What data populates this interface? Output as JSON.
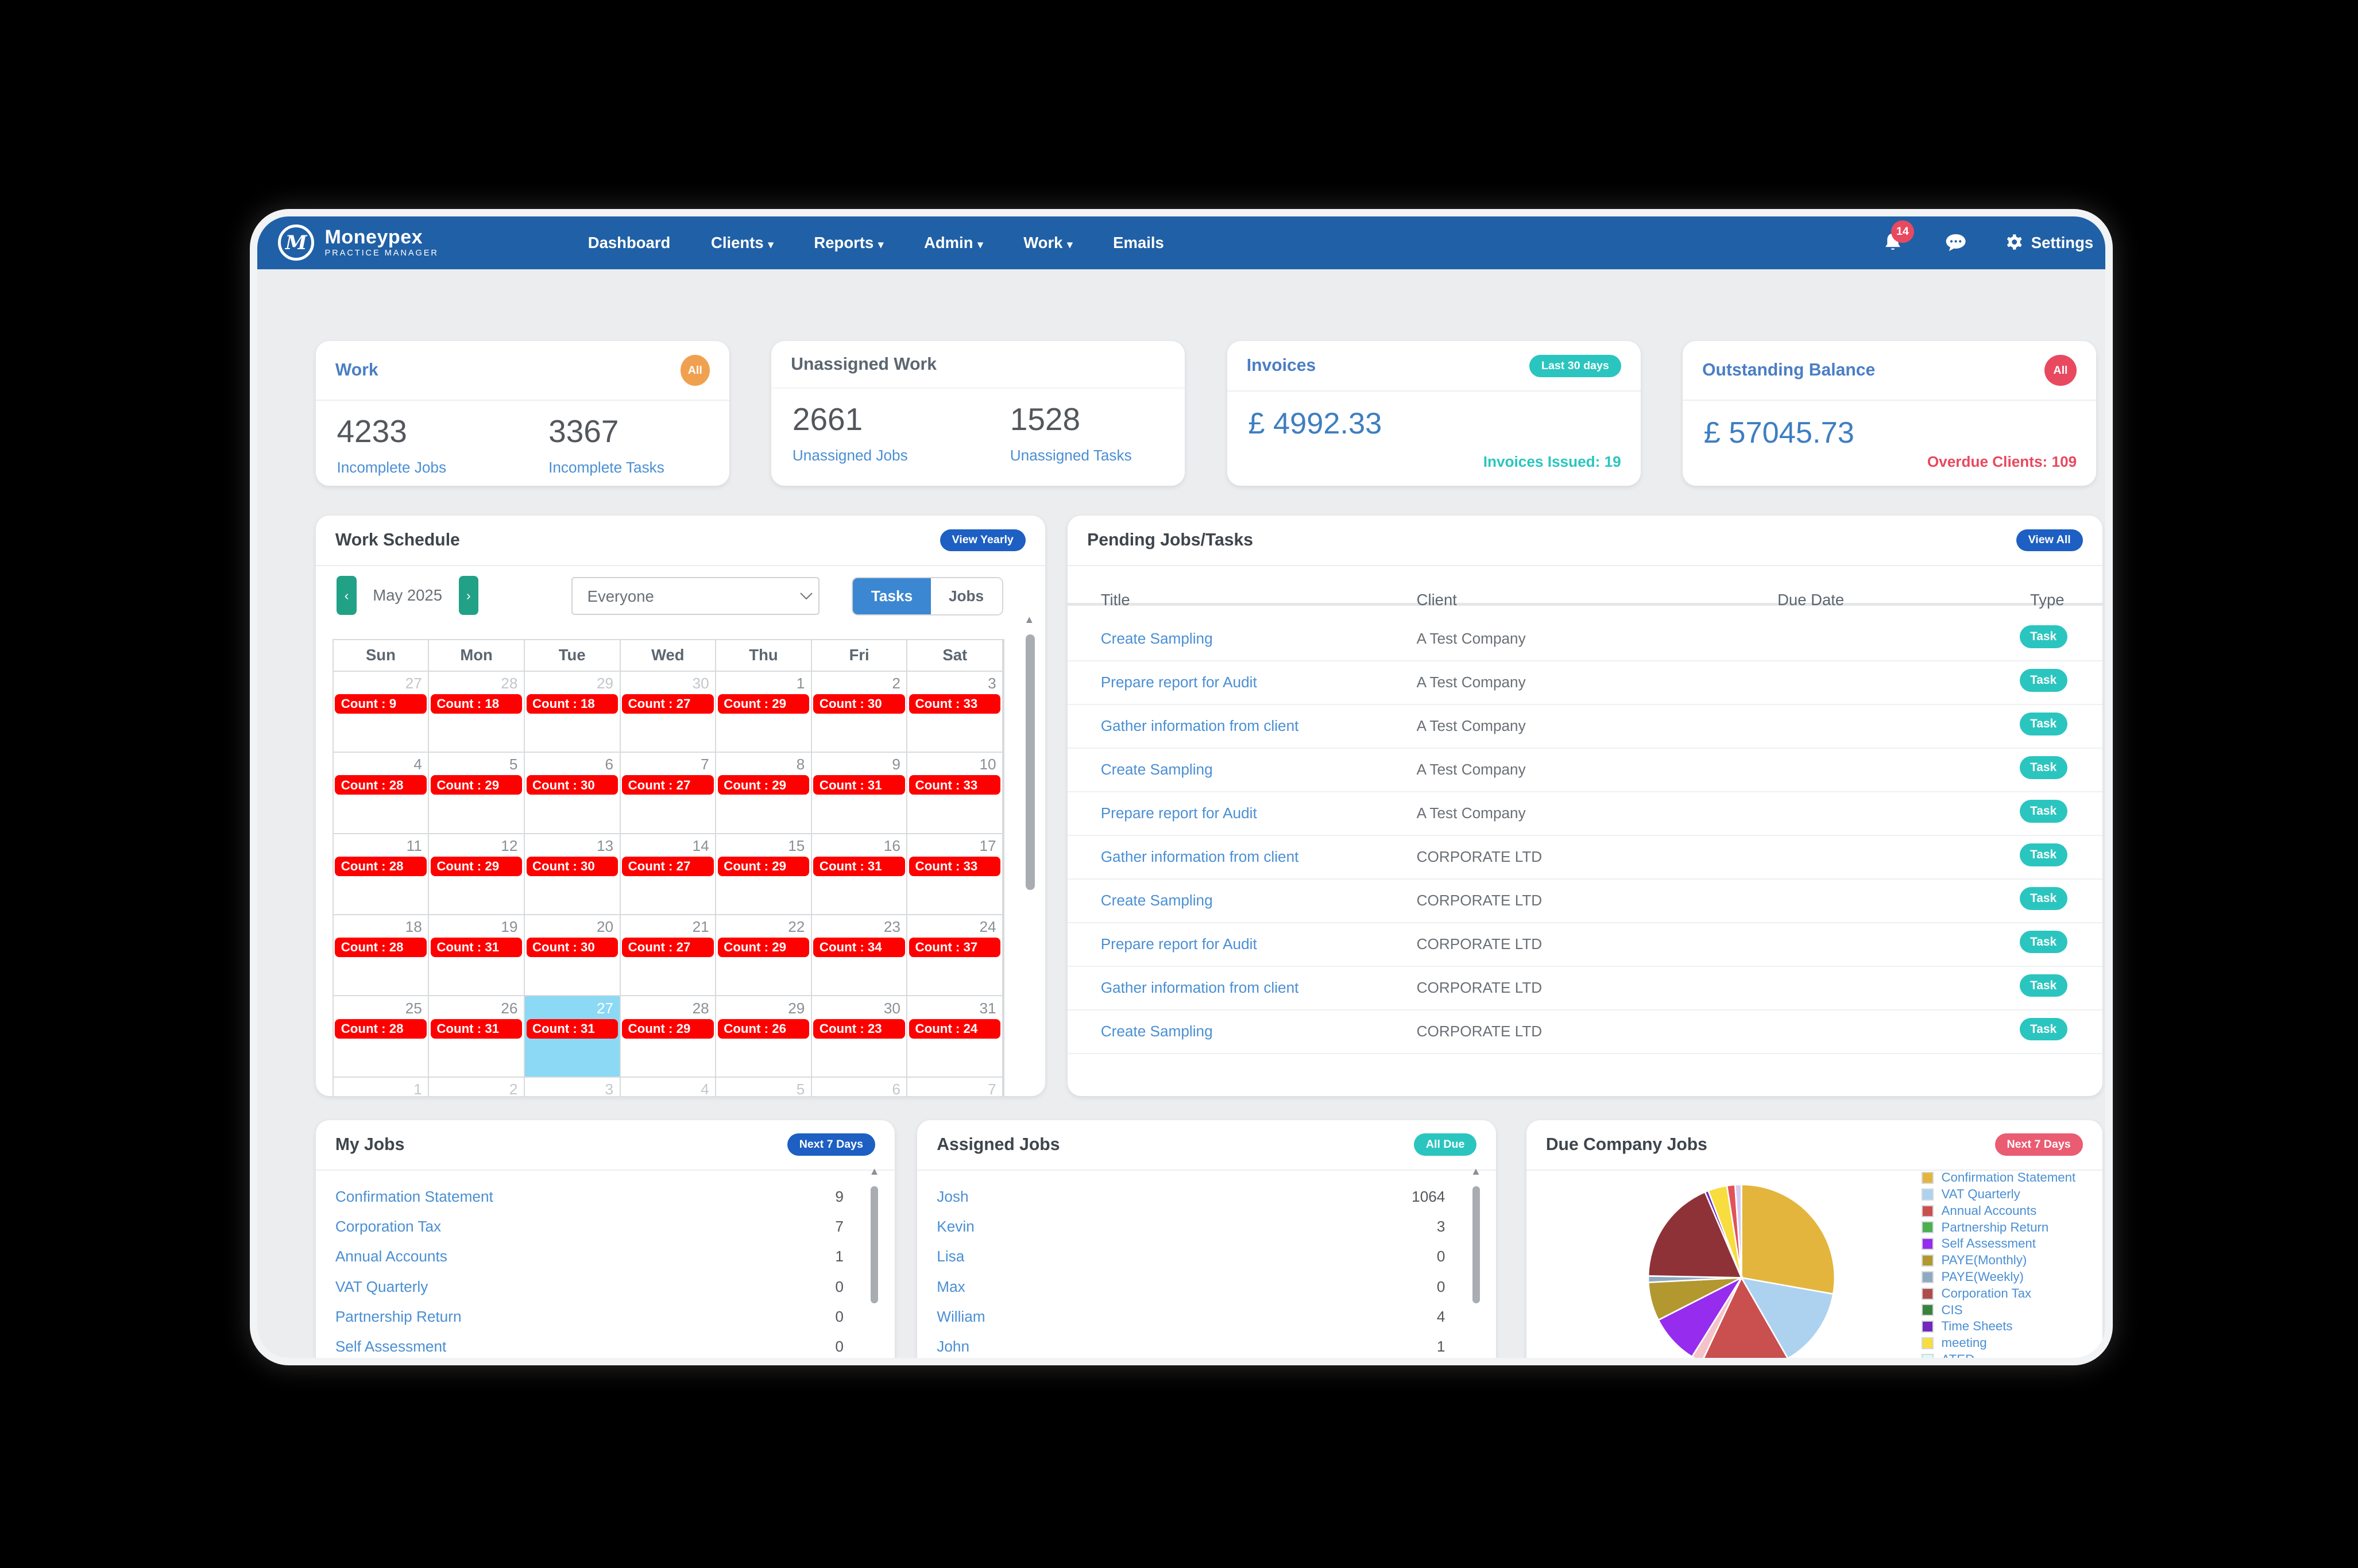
{
  "nav": {
    "brand": {
      "name": "Moneypex",
      "sub": "PRACTICE MANAGER",
      "logo_letter": "M"
    },
    "menu": [
      {
        "label": "Dashboard",
        "caret": false
      },
      {
        "label": "Clients",
        "caret": true
      },
      {
        "label": "Reports",
        "caret": true
      },
      {
        "label": "Admin",
        "caret": true
      },
      {
        "label": "Work",
        "caret": true
      },
      {
        "label": "Emails",
        "caret": false
      }
    ],
    "notification_count": "14",
    "settings_label": "Settings"
  },
  "stats": {
    "work": {
      "title": "Work",
      "badge": "All",
      "items": [
        {
          "value": "4233",
          "label": "Incomplete Jobs"
        },
        {
          "value": "3367",
          "label": "Incomplete Tasks"
        }
      ]
    },
    "unassigned": {
      "title": "Unassigned Work",
      "items": [
        {
          "value": "2661",
          "label": "Unassigned Jobs"
        },
        {
          "value": "1528",
          "label": "Unassigned Tasks"
        }
      ]
    },
    "invoices": {
      "title": "Invoices",
      "badge": "Last 30 days",
      "amount": "£ 4992.33",
      "note": "Invoices Issued: 19"
    },
    "outstanding": {
      "title": "Outstanding Balance",
      "badge": "All",
      "amount": "£ 57045.73",
      "note": "Overdue Clients: 109"
    }
  },
  "schedule": {
    "title": "Work Schedule",
    "action": "View Yearly",
    "month": "May 2025",
    "prev_icon": "‹",
    "next_icon": "›",
    "person": "Everyone",
    "toggle": [
      "Tasks",
      "Jobs"
    ],
    "active_toggle": "Tasks",
    "count_prefix": "Count : ",
    "weekdays": [
      "Sun",
      "Mon",
      "Tue",
      "Wed",
      "Thu",
      "Fri",
      "Sat"
    ],
    "weeks": [
      [
        {
          "d": 27,
          "out": true,
          "c": 9
        },
        {
          "d": 28,
          "out": true,
          "c": 18
        },
        {
          "d": 29,
          "out": true,
          "c": 18
        },
        {
          "d": 30,
          "out": true,
          "c": 27
        },
        {
          "d": 1,
          "c": 29
        },
        {
          "d": 2,
          "c": 30
        },
        {
          "d": 3,
          "c": 33
        }
      ],
      [
        {
          "d": 4,
          "c": 28
        },
        {
          "d": 5,
          "c": 29
        },
        {
          "d": 6,
          "c": 30
        },
        {
          "d": 7,
          "c": 27
        },
        {
          "d": 8,
          "c": 29
        },
        {
          "d": 9,
          "c": 31
        },
        {
          "d": 10,
          "c": 33
        }
      ],
      [
        {
          "d": 11,
          "c": 28
        },
        {
          "d": 12,
          "c": 29
        },
        {
          "d": 13,
          "c": 30
        },
        {
          "d": 14,
          "c": 27
        },
        {
          "d": 15,
          "c": 29
        },
        {
          "d": 16,
          "c": 31
        },
        {
          "d": 17,
          "c": 33
        }
      ],
      [
        {
          "d": 18,
          "c": 28
        },
        {
          "d": 19,
          "c": 31
        },
        {
          "d": 20,
          "c": 30
        },
        {
          "d": 21,
          "c": 27
        },
        {
          "d": 22,
          "c": 29
        },
        {
          "d": 23,
          "c": 34
        },
        {
          "d": 24,
          "c": 37
        }
      ],
      [
        {
          "d": 25,
          "c": 28
        },
        {
          "d": 26,
          "c": 31
        },
        {
          "d": 27,
          "c": 31,
          "today": true
        },
        {
          "d": 28,
          "c": 29
        },
        {
          "d": 29,
          "c": 26
        },
        {
          "d": 30,
          "c": 23
        },
        {
          "d": 31,
          "c": 24
        }
      ]
    ],
    "partial_week": [
      {
        "d": 1,
        "bar": true
      },
      {
        "d": 2,
        "bar": true
      },
      {
        "d": 3,
        "bar": true
      },
      {
        "d": 4,
        "bar": true
      },
      {
        "d": 5,
        "bar": false
      },
      {
        "d": 6,
        "bar": false
      },
      {
        "d": 7,
        "bar": true
      }
    ]
  },
  "pending": {
    "title": "Pending Jobs/Tasks",
    "action": "View All",
    "columns": [
      "Title",
      "Client",
      "Due Date",
      "Type"
    ],
    "rows": [
      {
        "title": "Create Sampling",
        "client": "A Test Company",
        "due": "",
        "type": "Task"
      },
      {
        "title": "Prepare report for Audit",
        "client": "A Test Company",
        "due": "",
        "type": "Task"
      },
      {
        "title": "Gather information from client",
        "client": "A Test Company",
        "due": "",
        "type": "Task"
      },
      {
        "title": "Create Sampling",
        "client": "A Test Company",
        "due": "",
        "type": "Task"
      },
      {
        "title": "Prepare report for Audit",
        "client": "A Test Company",
        "due": "",
        "type": "Task"
      },
      {
        "title": "Gather information from client",
        "client": "CORPORATE LTD",
        "due": "",
        "type": "Task"
      },
      {
        "title": "Create Sampling",
        "client": "CORPORATE LTD",
        "due": "",
        "type": "Task"
      },
      {
        "title": "Prepare report for Audit",
        "client": "CORPORATE LTD",
        "due": "",
        "type": "Task"
      },
      {
        "title": "Gather information from client",
        "client": "CORPORATE LTD",
        "due": "",
        "type": "Task"
      },
      {
        "title": "Create Sampling",
        "client": "CORPORATE LTD",
        "due": "",
        "type": "Task"
      }
    ]
  },
  "my_jobs": {
    "title": "My Jobs",
    "badge": "Next 7 Days",
    "items": [
      {
        "label": "Confirmation Statement",
        "count": "9"
      },
      {
        "label": "Corporation Tax",
        "count": "7"
      },
      {
        "label": "Annual Accounts",
        "count": "1"
      },
      {
        "label": "VAT Quarterly",
        "count": "0"
      },
      {
        "label": "Partnership Return",
        "count": "0"
      },
      {
        "label": "Self Assessment",
        "count": "0"
      }
    ]
  },
  "assigned_jobs": {
    "title": "Assigned Jobs",
    "badge": "All Due",
    "items": [
      {
        "label": "Josh",
        "count": "1064"
      },
      {
        "label": "Kevin",
        "count": "3"
      },
      {
        "label": "Lisa",
        "count": "0"
      },
      {
        "label": "Max",
        "count": "0"
      },
      {
        "label": "William",
        "count": "4"
      },
      {
        "label": "John",
        "count": "1"
      }
    ]
  },
  "due_company": {
    "title": "Due Company Jobs",
    "badge": "Next 7 Days",
    "chart_data": {
      "type": "pie",
      "legend_position": "right",
      "slices": [
        {
          "label": "Confirmation Statement",
          "color": "#E3B53C",
          "percent": 27.8
        },
        {
          "label": "VAT Quarterly",
          "color": "#ADD2F0",
          "percent": 13.9
        },
        {
          "label": "Annual Accounts",
          "color": "#C9504F",
          "percent": 15.3
        },
        {
          "label": "",
          "color": "#F3C3C9",
          "percent": 1.9
        },
        {
          "label": "Self Assessment",
          "color": "#962CEE",
          "percent": 8.6
        },
        {
          "label": "PAYE(Monthly)",
          "color": "#B3972F",
          "percent": 6.7
        },
        {
          "label": "PAYE(Weekly)",
          "color": "#8FA9C2",
          "percent": 1.1
        },
        {
          "label": "Corporation Tax",
          "color": "#8E3237",
          "percent": 18.3
        },
        {
          "label": "Time Sheets",
          "color": "#7227BE",
          "percent": 0.6
        },
        {
          "label": "meeting",
          "color": "#F7DD3D",
          "percent": 3.3
        },
        {
          "label": "",
          "color": "#E25257",
          "percent": 1.4
        },
        {
          "label": "",
          "color": "#D6CCF2",
          "percent": 1.1
        }
      ],
      "legend": [
        {
          "label": "Confirmation Statement",
          "color": "#E3B53C"
        },
        {
          "label": "VAT Quarterly",
          "color": "#ADD2F0"
        },
        {
          "label": "Annual Accounts",
          "color": "#C9504F"
        },
        {
          "label": "Partnership Return",
          "color": "#4CAF50"
        },
        {
          "label": "Self Assessment",
          "color": "#962CEE"
        },
        {
          "label": "PAYE(Monthly)",
          "color": "#B3972F"
        },
        {
          "label": "PAYE(Weekly)",
          "color": "#8FA9C2"
        },
        {
          "label": "Corporation Tax",
          "color": "#AF4C4A"
        },
        {
          "label": "CIS",
          "color": "#39823C"
        },
        {
          "label": "Time Sheets",
          "color": "#7227BE"
        },
        {
          "label": "meeting",
          "color": "#F7DD3D"
        },
        {
          "label": "ATED",
          "color": "#D9FBF9"
        }
      ]
    }
  }
}
